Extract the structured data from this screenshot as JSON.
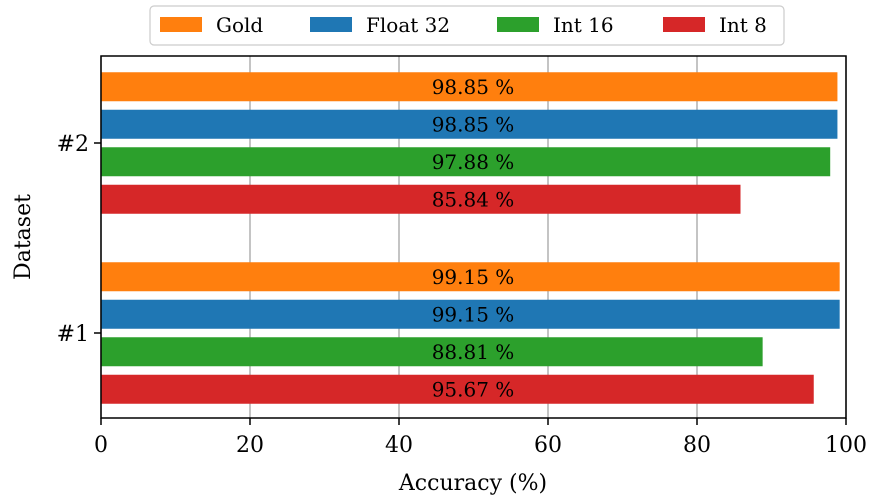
{
  "chart_data": {
    "type": "bar",
    "orientation": "horizontal",
    "categories": [
      "#1",
      "#2"
    ],
    "series": [
      {
        "name": "Gold",
        "color": "#ff7f0e",
        "values": [
          99.15,
          98.85
        ],
        "labels": [
          "99.15 %",
          "98.85 %"
        ]
      },
      {
        "name": "Float 32",
        "color": "#1f77b4",
        "values": [
          99.15,
          98.85
        ],
        "labels": [
          "99.15 %",
          "98.85 %"
        ]
      },
      {
        "name": "Int 16",
        "color": "#2ca02c",
        "values": [
          88.81,
          97.88
        ],
        "labels": [
          "88.81 %",
          "97.88 %"
        ]
      },
      {
        "name": "Int 8",
        "color": "#d62728",
        "values": [
          95.67,
          85.84
        ],
        "labels": [
          "95.67 %",
          "85.84 %"
        ]
      }
    ],
    "xlabel": "Accuracy (%)",
    "ylabel": "Dataset",
    "xlim": [
      0,
      100
    ],
    "xticks": [
      "0",
      "20",
      "40",
      "60",
      "80",
      "100"
    ],
    "grid": "x",
    "legend_position": "top-center"
  }
}
